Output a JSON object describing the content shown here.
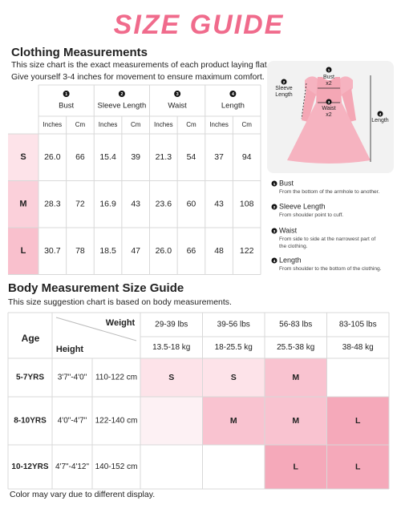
{
  "title": "SIZE GUIDE",
  "clothing": {
    "heading": "Clothing Measurements",
    "note": [
      "This size chart is the exact measurements of each product laying flat.",
      "Give yourself 3-4 inches for movement to ensure maximum comfort."
    ],
    "columns": [
      {
        "num": "1",
        "label": "Bust"
      },
      {
        "num": "2",
        "label": "Sleeve Length"
      },
      {
        "num": "3",
        "label": "Waist"
      },
      {
        "num": "4",
        "label": "Length"
      }
    ],
    "units": [
      "Inches",
      "Cm"
    ],
    "rows": [
      {
        "size": "S",
        "color": "#fde3e9",
        "values": [
          "26.0",
          "66",
          "15.4",
          "39",
          "21.3",
          "54",
          "37",
          "94"
        ]
      },
      {
        "size": "M",
        "color": "#fbd0da",
        "values": [
          "28.3",
          "72",
          "16.9",
          "43",
          "23.6",
          "60",
          "43",
          "108"
        ]
      },
      {
        "size": "L",
        "color": "#f9c0cd",
        "values": [
          "30.7",
          "78",
          "18.5",
          "47",
          "26.0",
          "66",
          "48",
          "122"
        ]
      }
    ]
  },
  "diagram": {
    "items": [
      {
        "num": "1",
        "lines": [
          "Bust",
          "x2"
        ]
      },
      {
        "num": "2",
        "lines": [
          "Sleeve",
          "Length"
        ]
      },
      {
        "num": "3",
        "lines": [
          "Waist",
          "x2"
        ]
      },
      {
        "num": "4",
        "lines": [
          "Length"
        ]
      }
    ]
  },
  "legend": [
    {
      "num": "1",
      "title": "Bust",
      "desc": [
        "From the bottom of the armhole to another."
      ]
    },
    {
      "num": "2",
      "title": "Sleeve Length",
      "desc": [
        "From shoulder point to cuff."
      ]
    },
    {
      "num": "3",
      "title": "Waist",
      "desc": [
        "From side to side at the narrowest part of",
        "the clothing."
      ]
    },
    {
      "num": "4",
      "title": "Length",
      "desc": [
        "From shoulder to the bottom of the clothing."
      ]
    }
  ],
  "body": {
    "heading": "Body Measurement Size Guide",
    "note": "This size suggestion chart is based on body measurements.",
    "age_header": "Age",
    "height_header": "Height",
    "weight_header": "Weight",
    "weights": [
      {
        "lbs": "29-39 lbs",
        "kg": "13.5-18 kg"
      },
      {
        "lbs": "39-56 lbs",
        "kg": "18-25.5 kg"
      },
      {
        "lbs": "56-83 lbs",
        "kg": "25.5-38 kg"
      },
      {
        "lbs": "83-105 lbs",
        "kg": "38-48 kg"
      }
    ],
    "rows": [
      {
        "age": "5-7YRS",
        "height": "3'7\"-4'0\"",
        "cm": "110-122 cm",
        "cells": [
          {
            "text": "S",
            "color": "#fde3e9"
          },
          {
            "text": "S",
            "color": "#fde3e9"
          },
          {
            "text": "M",
            "color": "#f9c3d0"
          },
          null
        ]
      },
      {
        "age": "8-10YRS",
        "height": "4'0\"-4'7\"",
        "cm": "122-140 cm",
        "cells": [
          {
            "color": "#fdf1f4"
          },
          {
            "text": "M",
            "color": "#f9c3d0"
          },
          {
            "text": "M",
            "color": "#f9c3d0"
          },
          {
            "text": "L",
            "color": "#f5a9ba"
          }
        ]
      },
      {
        "age": "10-12YRS",
        "height": "4'7\"-4'12\"",
        "cm": "140-152 cm",
        "cells": [
          null,
          null,
          {
            "text": "L",
            "color": "#f5a9ba"
          },
          {
            "text": "L",
            "color": "#f5a9ba"
          }
        ]
      }
    ]
  },
  "footer": "Color may vary due to different display."
}
